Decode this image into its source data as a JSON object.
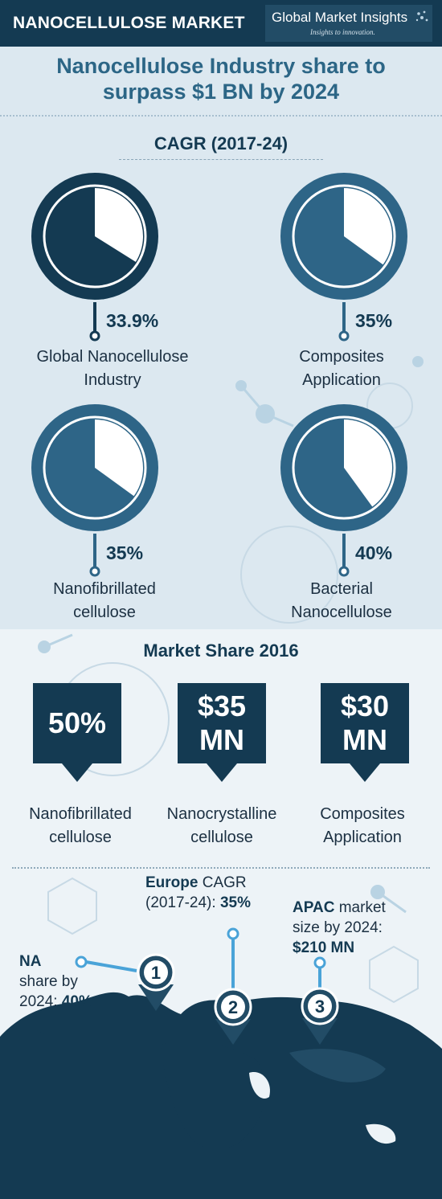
{
  "header": {
    "title": "NANOCELLULOSE MARKET",
    "brand": "Global Market Insights",
    "tagline": "Insights to innovation."
  },
  "headline": [
    "Nanocellulose Industry share to",
    "surpass $1 BN by 2024"
  ],
  "cagr_section": {
    "title": "CAGR (2017-24)"
  },
  "market_share_section": {
    "title": "Market Share 2016"
  },
  "colors": {
    "navy": "#143a52",
    "steel": "#2e6587",
    "accent": "#4aa3d8",
    "background": "#e7eff4"
  },
  "chart_data": [
    {
      "type": "pie",
      "title": "CAGR (2017-24)",
      "categories": [
        "Global Nanocellulose Industry",
        "Composites Application",
        "Nanofibrillated cellulose",
        "Bacterial Nanocellulose"
      ],
      "values": [
        33.9,
        35,
        35,
        40
      ],
      "unit": "%",
      "items": [
        {
          "value": 33.9,
          "value_label": "33.9%",
          "label_lines": [
            "Global Nanocellulose",
            "Industry"
          ]
        },
        {
          "value": 35,
          "value_label": "35%",
          "label_lines": [
            "Composites",
            "Application"
          ]
        },
        {
          "value": 35,
          "value_label": "35%",
          "label_lines": [
            "Nanofibrillated",
            "cellulose"
          ]
        },
        {
          "value": 40,
          "value_label": "40%",
          "label_lines": [
            "Bacterial",
            "Nanocellulose"
          ]
        }
      ]
    },
    {
      "type": "table",
      "title": "Market Share 2016",
      "items": [
        {
          "value_lines": [
            "50%"
          ],
          "label_lines": [
            "Nanofibrillated",
            "cellulose"
          ]
        },
        {
          "value_lines": [
            "$35",
            "MN"
          ],
          "label_lines": [
            "Nanocrystalline",
            "cellulose"
          ]
        },
        {
          "value_lines": [
            "$30",
            "MN"
          ],
          "label_lines": [
            "Composites",
            "Application"
          ]
        }
      ]
    }
  ],
  "regions": [
    {
      "number": "1",
      "lines": [
        {
          "bold": "NA",
          "rest": ""
        },
        {
          "bold": "",
          "rest": "share by"
        },
        {
          "bold": "",
          "rest": "2024: ",
          "value": "40%"
        }
      ]
    },
    {
      "number": "2",
      "lines": [
        {
          "bold": "Europe",
          "rest": " CAGR"
        },
        {
          "bold": "",
          "rest": "(2017-24): ",
          "value": "35%"
        }
      ]
    },
    {
      "number": "3",
      "lines": [
        {
          "bold": "APAC",
          "rest": " market"
        },
        {
          "bold": "",
          "rest": "size by 2024:"
        },
        {
          "bold": "",
          "rest": "",
          "value": "$210 MN"
        }
      ]
    }
  ]
}
